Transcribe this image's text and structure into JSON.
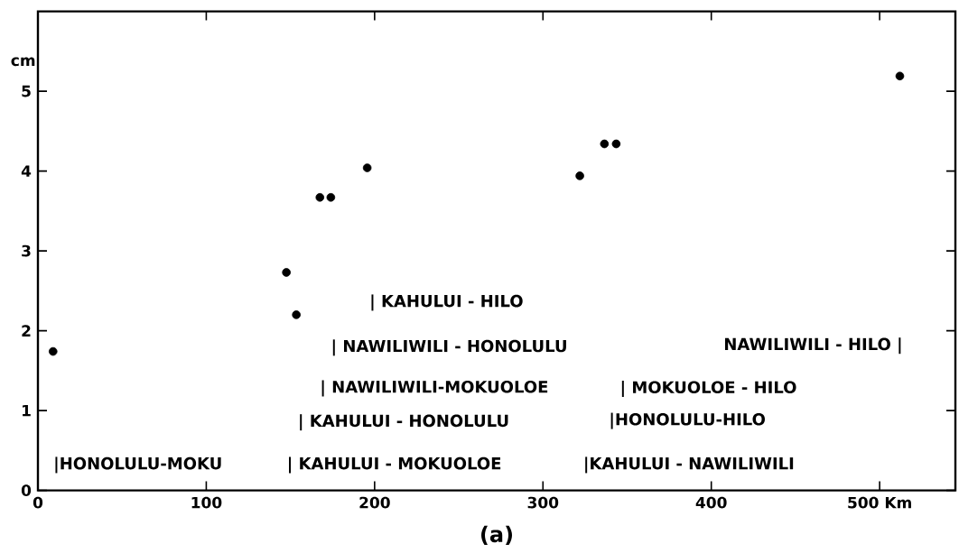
{
  "chart_data": {
    "type": "scatter",
    "ylabel": "cm",
    "x": [
      9,
      147.6,
      153.5,
      167.5,
      174,
      195.6,
      321.9,
      336.5,
      343.5,
      512
    ],
    "values": [
      1.74,
      2.73,
      2.2,
      3.67,
      3.67,
      4.04,
      3.94,
      4.34,
      4.34,
      5.19
    ],
    "color": "#000000",
    "xlim": [
      0,
      545
    ],
    "ylim": [
      0,
      6
    ],
    "xticks": [
      0,
      100,
      200,
      300,
      400,
      {
        "value": 500,
        "label": "500 Km"
      }
    ],
    "yticks": [
      0,
      1,
      2,
      3,
      4,
      5
    ],
    "annotations": [
      "|HONOLULU-MOKU",
      "| KAHULUI - MOKUOLOE",
      "| KAHULUI - HONOLULU",
      "| NAWILIWILI-MOKUOLOE",
      "| NAWILIWILI - HONOLULU",
      "| KAHULUI - HILO",
      "|KAHULUI - NAWILIWILI",
      "|HONOLULU-HILO",
      "| MOKUOLOE - HILO",
      "NAWILIWILI - HILO |",
      "(a)"
    ]
  }
}
